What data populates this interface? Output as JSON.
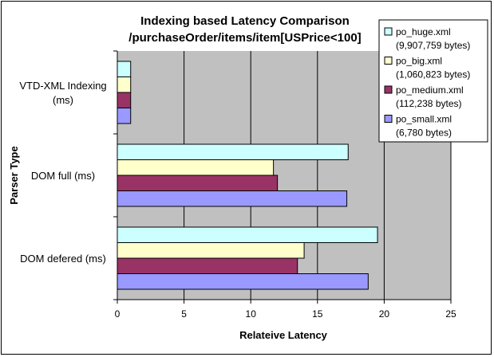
{
  "chart_data": {
    "type": "bar",
    "orientation": "horizontal",
    "title": "Indexing based Latency Comparison",
    "subtitle": "/purchaseOrder/items/item[USPrice<100]",
    "xlabel": "Relateive Latency",
    "ylabel": "Parser Type",
    "xlim": [
      0,
      25
    ],
    "xticks": [
      "0",
      "5",
      "10",
      "15",
      "20",
      "25"
    ],
    "xtick_values": [
      0,
      5,
      10,
      15,
      20,
      25
    ],
    "grid": true,
    "legend_position": "top-right",
    "categories": [
      [
        "VTD-XML Indexing",
        "(ms)"
      ],
      [
        "DOM full (ms)"
      ],
      [
        "DOM defered (ms)"
      ]
    ],
    "series": [
      {
        "name": [
          "po_huge.xml",
          "(9,907,759 bytes)"
        ],
        "color": "#ccffff",
        "values": [
          1.0,
          17.3,
          19.5
        ]
      },
      {
        "name": [
          "po_big.xml",
          "(1,060,823 bytes)"
        ],
        "color": "#ffffcc",
        "values": [
          1.0,
          11.7,
          14.0
        ]
      },
      {
        "name": [
          "po_medium.xml",
          "(112,238 bytes)"
        ],
        "color": "#993366",
        "values": [
          1.0,
          12.0,
          13.5
        ]
      },
      {
        "name": [
          "po_small.xml",
          "(6,780 bytes)"
        ],
        "color": "#9999ff",
        "values": [
          1.0,
          17.2,
          18.8
        ]
      }
    ],
    "colors": {
      "plot_background": "#c0c0c0",
      "gridline": "#000000"
    }
  }
}
